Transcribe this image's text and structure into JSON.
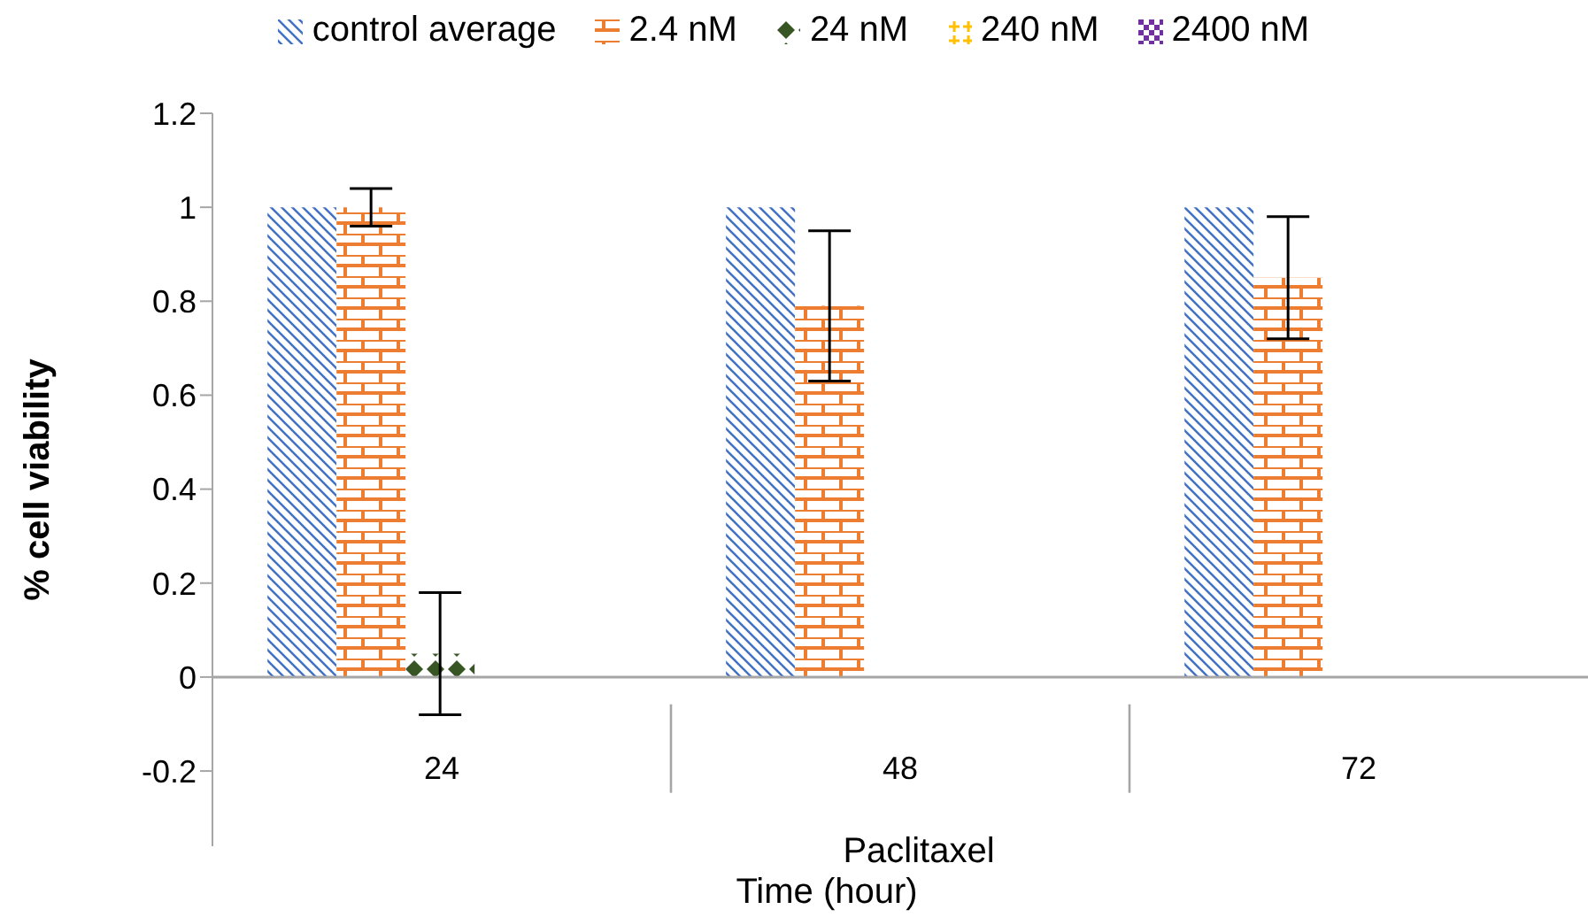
{
  "chart_data": {
    "type": "bar",
    "xlabel": "Time (hour)",
    "ylabel": "% cell viability",
    "annotations": [
      "Paclitaxel"
    ],
    "categories": [
      "24",
      "48",
      "72"
    ],
    "series": [
      {
        "name": "control average",
        "color": "#4472c4",
        "values": [
          1,
          1,
          1
        ],
        "errors": [
          0,
          0,
          0
        ]
      },
      {
        "name": "2.4 nM",
        "color": "#ed7d31",
        "values": [
          1.0,
          0.79,
          0.85
        ],
        "errors": [
          0.04,
          0.16,
          0.13
        ]
      },
      {
        "name": "24 nM",
        "color": "#375623",
        "values": [
          0.05,
          0,
          0
        ],
        "errors": [
          0.13,
          null,
          null
        ]
      },
      {
        "name": "240 nM",
        "color": "#ffc000",
        "values": [
          0,
          0,
          0
        ]
      },
      {
        "name": "2400 nM",
        "color": "#7030a0",
        "values": [
          0,
          0,
          0
        ]
      }
    ],
    "ylim": [
      -0.36,
      1.2
    ],
    "yticks": [
      -0.2,
      0,
      0.2,
      0.4,
      0.6,
      0.8,
      1,
      1.2
    ],
    "grid": false,
    "legend": "top"
  }
}
